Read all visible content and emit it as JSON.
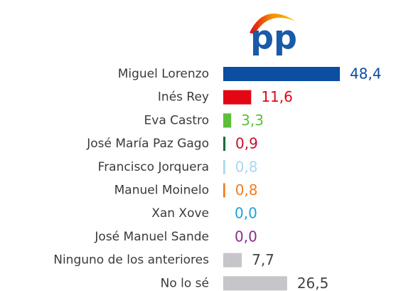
{
  "logo": "pp",
  "chart_data": {
    "type": "bar",
    "orientation": "horizontal",
    "categories": [
      "Miguel Lorenzo",
      "Inés Rey",
      "Eva Castro",
      "José María Paz Gago",
      "Francisco Jorquera",
      "Manuel Moinelo",
      "Xan Xove",
      "José Manuel Sande",
      "Ninguno de los anteriores",
      "No lo sé"
    ],
    "values": [
      48.4,
      11.6,
      3.3,
      0.9,
      0.8,
      0.8,
      0.0,
      0.0,
      7.7,
      26.5
    ],
    "value_labels": [
      "48,4",
      "11,6",
      "3,3",
      "0,9",
      "0,8",
      "0,8",
      "0,0",
      "0,0",
      "7,7",
      "26,5"
    ],
    "colors": [
      "#0b4ea2",
      "#e30613",
      "#5cbf3a",
      "#1a6b3a",
      "#a8d8f0",
      "#f07c22",
      "#1ea0dc",
      "#8e2a8e",
      "#c5c5ca",
      "#c5c5ca"
    ],
    "label_colors": [
      "#0b4ea2",
      "#e30613",
      "#5cbf3a",
      "#c8102e",
      "#a8d8f0",
      "#f07c22",
      "#1ea0dc",
      "#8e2a8e",
      "#444444",
      "#444444"
    ]
  }
}
